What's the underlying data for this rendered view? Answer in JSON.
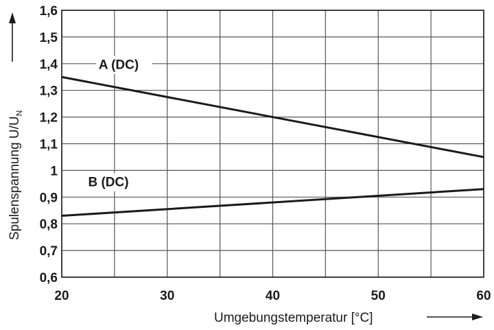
{
  "chart_data": {
    "type": "line",
    "title": "",
    "xlabel": "Umgebungstemperatur [°C]",
    "ylabel": "Spulenspannung U/U",
    "ylabel_subscript": "N",
    "xlim": [
      20,
      60
    ],
    "ylim": [
      0.6,
      1.6
    ],
    "x_ticks": [
      {
        "value": 20,
        "label": "20"
      },
      {
        "value": 30,
        "label": "30"
      },
      {
        "value": 40,
        "label": "40"
      },
      {
        "value": 50,
        "label": "50"
      },
      {
        "value": 60,
        "label": "60"
      }
    ],
    "y_ticks": [
      {
        "value": 0.6,
        "label": "0,6"
      },
      {
        "value": 0.7,
        "label": "0,7"
      },
      {
        "value": 0.8,
        "label": "0,8"
      },
      {
        "value": 0.9,
        "label": "0,9"
      },
      {
        "value": 1.0,
        "label": "1"
      },
      {
        "value": 1.1,
        "label": "1,1"
      },
      {
        "value": 1.2,
        "label": "1,2"
      },
      {
        "value": 1.3,
        "label": "1,3"
      },
      {
        "value": 1.4,
        "label": "1,4"
      },
      {
        "value": 1.5,
        "label": "1,5"
      },
      {
        "value": 1.6,
        "label": "1,6"
      }
    ],
    "x_grid": [
      20,
      25,
      30,
      35,
      40,
      45,
      50,
      55,
      60
    ],
    "grid": true,
    "series": [
      {
        "name": "A (DC)",
        "x": [
          20,
          60
        ],
        "y": [
          1.35,
          1.05
        ],
        "label_at": {
          "x": 23.5,
          "y": 1.38
        }
      },
      {
        "name": "B (DC)",
        "x": [
          20,
          60
        ],
        "y": [
          0.83,
          0.93
        ],
        "label_at": {
          "x": 22.5,
          "y": 0.94
        }
      }
    ],
    "color": "#1a1a1a"
  }
}
